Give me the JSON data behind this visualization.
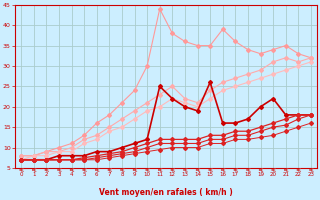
{
  "x": [
    0,
    1,
    2,
    3,
    4,
    5,
    6,
    7,
    8,
    9,
    10,
    11,
    12,
    13,
    14,
    15,
    16,
    17,
    18,
    19,
    20,
    21,
    22,
    23
  ],
  "series": [
    {
      "color": "#ff9999",
      "marker": "D",
      "markersize": 2.0,
      "linewidth": 0.8,
      "y": [
        8,
        8,
        9,
        10,
        11,
        13,
        16,
        18,
        21,
        24,
        30,
        44,
        38,
        36,
        35,
        35,
        39,
        36,
        34,
        33,
        34,
        35,
        33,
        32
      ]
    },
    {
      "color": "#ffaaaa",
      "marker": "D",
      "markersize": 2.0,
      "linewidth": 0.8,
      "y": [
        8,
        8,
        9,
        9,
        10,
        12,
        13,
        15,
        17,
        19,
        21,
        23,
        25,
        22,
        21,
        24,
        26,
        27,
        28,
        29,
        31,
        32,
        31,
        32
      ]
    },
    {
      "color": "#ffbbbb",
      "marker": "D",
      "markersize": 2.0,
      "linewidth": 0.8,
      "y": [
        7,
        8,
        8,
        9,
        9,
        11,
        12,
        14,
        15,
        17,
        19,
        20,
        22,
        21,
        20,
        22,
        24,
        25,
        26,
        27,
        28,
        29,
        30,
        31
      ]
    },
    {
      "color": "#cc0000",
      "marker": "D",
      "markersize": 2.0,
      "linewidth": 1.2,
      "y": [
        7,
        7,
        7,
        8,
        8,
        8,
        9,
        9,
        10,
        11,
        12,
        25,
        22,
        20,
        19,
        26,
        16,
        16,
        17,
        20,
        22,
        18,
        18,
        18
      ]
    },
    {
      "color": "#dd2222",
      "marker": "D",
      "markersize": 2.0,
      "linewidth": 0.9,
      "y": [
        7,
        7,
        7,
        7,
        7,
        7.5,
        8,
        8.5,
        9,
        10,
        11,
        12,
        12,
        12,
        12,
        13,
        13,
        14,
        14,
        15,
        16,
        17,
        18,
        18
      ]
    },
    {
      "color": "#dd2222",
      "marker": "D",
      "markersize": 2.0,
      "linewidth": 0.8,
      "y": [
        7,
        7,
        7,
        7,
        7,
        7,
        7.5,
        8,
        8.5,
        9,
        10,
        11,
        11,
        11,
        11,
        12,
        12,
        13,
        13,
        14,
        15,
        15.5,
        17,
        18
      ]
    },
    {
      "color": "#dd2222",
      "marker": "D",
      "markersize": 2.0,
      "linewidth": 0.7,
      "y": [
        7,
        7,
        7,
        7,
        7,
        7,
        7,
        7.5,
        8,
        8.5,
        9,
        9.5,
        10,
        10,
        10,
        11,
        11,
        12,
        12,
        12.5,
        13,
        14,
        15,
        16
      ]
    }
  ],
  "xlabel": "Vent moyen/en rafales ( km/h )",
  "xlim": [
    -0.5,
    23.5
  ],
  "ylim": [
    5,
    45
  ],
  "yticks": [
    5,
    10,
    15,
    20,
    25,
    30,
    35,
    40,
    45
  ],
  "xticks": [
    0,
    1,
    2,
    3,
    4,
    5,
    6,
    7,
    8,
    9,
    10,
    11,
    12,
    13,
    14,
    15,
    16,
    17,
    18,
    19,
    20,
    21,
    22,
    23
  ],
  "bg_color": "#cceeff",
  "grid_color": "#aacccc",
  "arrow_color": "#cc4444",
  "tick_color": "#cc0000",
  "label_color": "#cc0000"
}
